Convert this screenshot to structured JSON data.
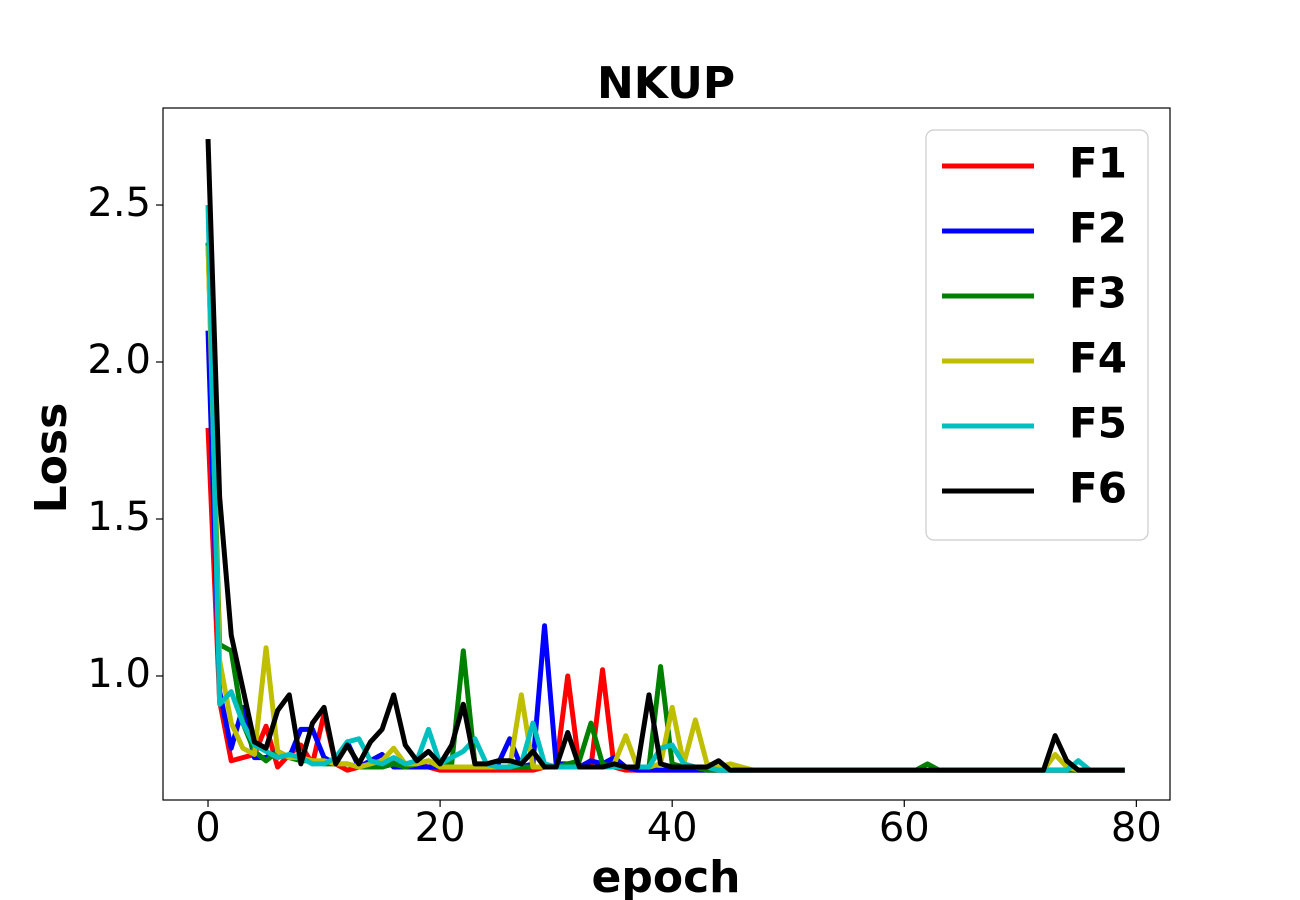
{
  "chart_data": {
    "type": "line",
    "title": "NKUP",
    "x_label": "epoch",
    "y_label": "Loss",
    "x": [
      0,
      1,
      2,
      3,
      4,
      5,
      6,
      7,
      8,
      9,
      10,
      11,
      12,
      13,
      14,
      15,
      16,
      17,
      18,
      19,
      20,
      21,
      22,
      23,
      24,
      25,
      26,
      27,
      28,
      29,
      30,
      31,
      32,
      33,
      34,
      35,
      36,
      37,
      38,
      39,
      40,
      41,
      42,
      43,
      44,
      45,
      46,
      47,
      48,
      49,
      50,
      51,
      52,
      53,
      54,
      55,
      56,
      57,
      58,
      59,
      60,
      61,
      62,
      63,
      64,
      65,
      66,
      67,
      68,
      69,
      70,
      71,
      72,
      73,
      74,
      75,
      76,
      77,
      78,
      79
    ],
    "series": [
      {
        "name": "F1",
        "color": "#ff0000",
        "values": [
          1.79,
          0.92,
          0.73,
          0.74,
          0.75,
          0.84,
          0.71,
          0.75,
          0.78,
          0.72,
          0.88,
          0.72,
          0.7,
          0.71,
          0.71,
          0.71,
          0.73,
          0.71,
          0.72,
          0.71,
          0.7,
          0.7,
          0.7,
          0.7,
          0.7,
          0.7,
          0.7,
          0.7,
          0.7,
          0.71,
          0.71,
          1.0,
          0.71,
          0.71,
          1.02,
          0.71,
          0.7,
          0.7,
          0.7,
          0.7,
          0.7,
          0.7,
          0.7,
          0.7,
          0.7,
          0.7,
          0.7,
          0.7,
          0.7,
          0.7,
          0.7,
          0.7,
          0.7,
          0.7,
          0.7,
          0.7,
          0.7,
          0.7,
          0.7,
          0.7,
          0.7,
          0.7,
          0.7,
          0.7,
          0.7,
          0.7,
          0.7,
          0.7,
          0.7,
          0.7,
          0.7,
          0.7,
          0.7,
          0.7,
          0.7,
          0.7,
          0.7,
          0.7,
          0.7,
          0.7
        ]
      },
      {
        "name": "F2",
        "color": "#0000ff",
        "values": [
          2.1,
          0.95,
          0.77,
          0.9,
          0.74,
          0.74,
          0.76,
          0.74,
          0.83,
          0.83,
          0.74,
          0.72,
          0.79,
          0.71,
          0.73,
          0.75,
          0.71,
          0.71,
          0.71,
          0.71,
          0.71,
          0.71,
          0.71,
          0.71,
          0.71,
          0.72,
          0.8,
          0.71,
          0.72,
          1.16,
          0.72,
          0.72,
          0.71,
          0.73,
          0.72,
          0.74,
          0.71,
          0.7,
          0.7,
          0.7,
          0.7,
          0.7,
          0.7,
          0.7,
          0.7,
          0.7,
          0.7,
          0.7,
          0.7,
          0.7,
          0.7,
          0.7,
          0.7,
          0.7,
          0.7,
          0.7,
          0.7,
          0.7,
          0.7,
          0.7,
          0.7,
          0.7,
          0.7,
          0.7,
          0.7,
          0.7,
          0.7,
          0.7,
          0.7,
          0.7,
          0.7,
          0.7,
          0.7,
          0.7,
          0.7,
          0.7,
          0.7,
          0.7,
          0.7,
          0.7
        ]
      },
      {
        "name": "F3",
        "color": "#008000",
        "values": [
          2.38,
          1.1,
          1.08,
          0.85,
          0.76,
          0.73,
          0.76,
          0.74,
          0.73,
          0.73,
          0.72,
          0.72,
          0.72,
          0.71,
          0.71,
          0.71,
          0.72,
          0.71,
          0.72,
          0.73,
          0.71,
          0.72,
          1.08,
          0.72,
          0.71,
          0.71,
          0.71,
          0.71,
          0.71,
          0.71,
          0.71,
          0.72,
          0.73,
          0.85,
          0.72,
          0.71,
          0.71,
          0.71,
          0.71,
          1.03,
          0.72,
          0.71,
          0.71,
          0.7,
          0.7,
          0.7,
          0.7,
          0.7,
          0.7,
          0.7,
          0.7,
          0.7,
          0.7,
          0.7,
          0.7,
          0.7,
          0.7,
          0.7,
          0.7,
          0.7,
          0.7,
          0.7,
          0.72,
          0.7,
          0.7,
          0.7,
          0.7,
          0.7,
          0.7,
          0.7,
          0.7,
          0.7,
          0.7,
          0.7,
          0.7,
          0.7,
          0.7,
          0.7,
          0.7,
          0.7
        ]
      },
      {
        "name": "F4",
        "color": "#bfbf00",
        "values": [
          2.37,
          1.05,
          0.85,
          0.77,
          0.75,
          1.09,
          0.76,
          0.74,
          0.74,
          0.73,
          0.73,
          0.72,
          0.72,
          0.71,
          0.72,
          0.73,
          0.77,
          0.72,
          0.72,
          0.73,
          0.71,
          0.71,
          0.71,
          0.71,
          0.71,
          0.71,
          0.71,
          0.94,
          0.71,
          0.71,
          0.71,
          0.71,
          0.71,
          0.71,
          0.71,
          0.72,
          0.81,
          0.71,
          0.71,
          0.72,
          0.9,
          0.72,
          0.86,
          0.72,
          0.71,
          0.72,
          0.71,
          0.7,
          0.7,
          0.7,
          0.7,
          0.7,
          0.7,
          0.7,
          0.7,
          0.7,
          0.7,
          0.7,
          0.7,
          0.7,
          0.7,
          0.7,
          0.7,
          0.7,
          0.7,
          0.7,
          0.7,
          0.7,
          0.7,
          0.7,
          0.7,
          0.7,
          0.7,
          0.75,
          0.71,
          0.7,
          0.7,
          0.7,
          0.7,
          0.7
        ]
      },
      {
        "name": "F5",
        "color": "#00bfbf",
        "values": [
          2.5,
          0.91,
          0.95,
          0.85,
          0.78,
          0.76,
          0.74,
          0.75,
          0.74,
          0.72,
          0.72,
          0.74,
          0.79,
          0.8,
          0.73,
          0.72,
          0.74,
          0.72,
          0.73,
          0.83,
          0.72,
          0.74,
          0.76,
          0.8,
          0.72,
          0.71,
          0.71,
          0.72,
          0.85,
          0.72,
          0.71,
          0.71,
          0.71,
          0.71,
          0.71,
          0.71,
          0.71,
          0.71,
          0.71,
          0.77,
          0.78,
          0.72,
          0.71,
          0.71,
          0.7,
          0.7,
          0.7,
          0.7,
          0.7,
          0.7,
          0.7,
          0.7,
          0.7,
          0.7,
          0.7,
          0.7,
          0.7,
          0.7,
          0.7,
          0.7,
          0.7,
          0.7,
          0.7,
          0.7,
          0.7,
          0.7,
          0.7,
          0.7,
          0.7,
          0.7,
          0.7,
          0.7,
          0.7,
          0.7,
          0.7,
          0.73,
          0.7,
          0.7,
          0.7,
          0.7
        ]
      },
      {
        "name": "F6",
        "color": "#000000",
        "values": [
          2.71,
          1.57,
          1.13,
          0.96,
          0.79,
          0.77,
          0.89,
          0.94,
          0.72,
          0.85,
          0.9,
          0.72,
          0.78,
          0.72,
          0.79,
          0.83,
          0.94,
          0.78,
          0.73,
          0.76,
          0.72,
          0.78,
          0.91,
          0.72,
          0.72,
          0.73,
          0.73,
          0.72,
          0.76,
          0.71,
          0.71,
          0.82,
          0.71,
          0.71,
          0.71,
          0.72,
          0.71,
          0.71,
          0.94,
          0.72,
          0.71,
          0.71,
          0.71,
          0.71,
          0.73,
          0.7,
          0.7,
          0.7,
          0.7,
          0.7,
          0.7,
          0.7,
          0.7,
          0.7,
          0.7,
          0.7,
          0.7,
          0.7,
          0.7,
          0.7,
          0.7,
          0.7,
          0.7,
          0.7,
          0.7,
          0.7,
          0.7,
          0.7,
          0.7,
          0.7,
          0.7,
          0.7,
          0.7,
          0.81,
          0.73,
          0.7,
          0.7,
          0.7,
          0.7,
          0.7
        ]
      }
    ],
    "xlim": [
      -3.88,
      82.9
    ],
    "ylim": [
      0.605,
      2.809
    ],
    "xticks": [
      0,
      20,
      40,
      60,
      80
    ],
    "yticks": [
      {
        "value": 1.0,
        "label": "1.0"
      },
      {
        "value": 1.5,
        "label": "1.5"
      },
      {
        "value": 2.0,
        "label": "2.0"
      },
      {
        "value": 2.5,
        "label": "2.5"
      }
    ],
    "legend": "upper right",
    "grid": false
  }
}
